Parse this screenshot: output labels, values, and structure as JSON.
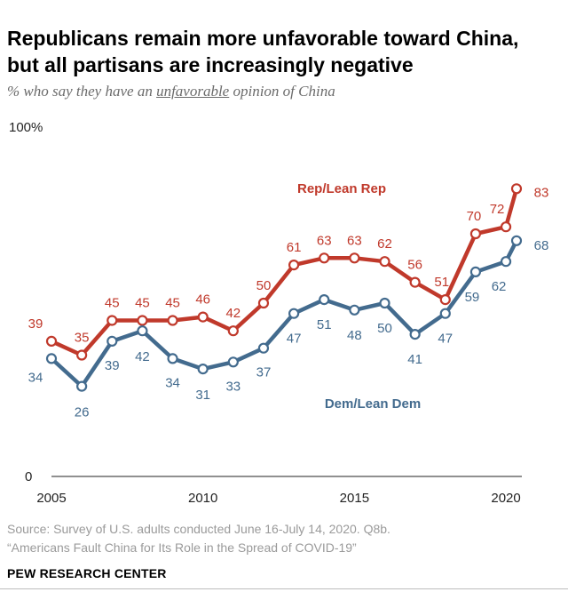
{
  "header": {
    "title_line1": "Republicans remain more unfavorable toward China,",
    "title_line2": "but all partisans are increasingly negative",
    "subtitle_pre": "% who say they have an ",
    "subtitle_em": "unfavorable",
    "subtitle_post": " opinion of China"
  },
  "footer": {
    "source_line1": "Source: Survey of U.S. adults conducted June 16-July 14, 2020. Q8b.",
    "source_line2": "“Americans Fault China for Its Role in the Spread of COVID-19”",
    "org": "PEW RESEARCH CENTER"
  },
  "chart_data": {
    "type": "line",
    "x": [
      2005,
      2006,
      2007,
      2008,
      2009,
      2010,
      2011,
      2012,
      2013,
      2014,
      2015,
      2016,
      2017,
      2018,
      2019,
      2020,
      2020.35
    ],
    "series": [
      {
        "name": "Rep/Lean Rep",
        "color": "#c0392b",
        "values": [
          39,
          35,
          45,
          45,
          45,
          46,
          42,
          50,
          61,
          63,
          63,
          62,
          56,
          51,
          70,
          72,
          83
        ]
      },
      {
        "name": "Dem/Lean Dem",
        "color": "#436b8e",
        "values": [
          34,
          26,
          39,
          42,
          34,
          31,
          33,
          37,
          47,
          51,
          48,
          50,
          41,
          47,
          59,
          62,
          68
        ]
      }
    ],
    "xticks": [
      "2005",
      "2010",
      "2015",
      "2020"
    ],
    "ytop_label": "100%",
    "ybottom_label": "0",
    "ylim": [
      0,
      100
    ],
    "xlim": [
      2005,
      2020.35
    ],
    "grid": false,
    "legend": "inline labels"
  }
}
